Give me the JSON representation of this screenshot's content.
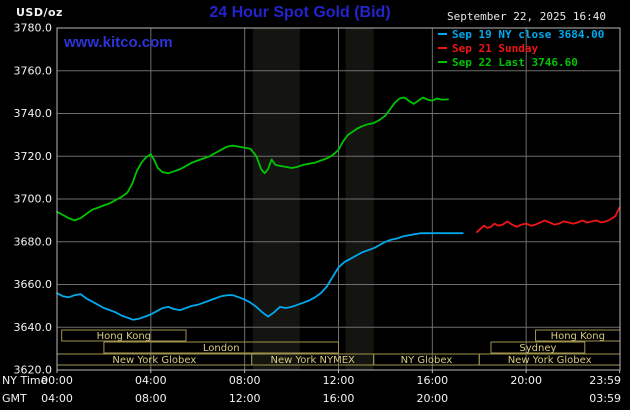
{
  "header": {
    "unit": "USD/oz",
    "title": "24 Hour Spot Gold (Bid)",
    "datetime": "September 22, 2025 16:40"
  },
  "watermark": "www.kitco.com",
  "legend": [
    {
      "label": "Sep 19 NY close 3684.00",
      "color": "#00a8ec"
    },
    {
      "label": "Sep 21 Sunday",
      "color": "#ee1515"
    },
    {
      "label": "Sep 22 Last 3746.60",
      "color": "#00c400"
    }
  ],
  "colors": {
    "background": "#000000",
    "grid": "#6e6e6e",
    "border": "#b8b8b8",
    "axis_text": "#f2f2f2",
    "title_blue": "#2424cf",
    "session_border": "#a0934e",
    "session_text": "#d8ca80",
    "band": "rgba(200,200,160,0.10)"
  },
  "axes": {
    "y": {
      "min": 3620,
      "max": 3780,
      "step": 20,
      "tick_labels": [
        "3780.0",
        "3760.0",
        "3740.0",
        "3720.0",
        "3700.0",
        "3680.0",
        "3660.0",
        "3640.0",
        "3620.0"
      ]
    },
    "x": {
      "row1_label": "NY Time",
      "row2_label": "GMT",
      "ticks": [
        {
          "hour": 0,
          "ny": "00:00",
          "gmt": "04:00"
        },
        {
          "hour": 4,
          "ny": "04:00",
          "gmt": "08:00"
        },
        {
          "hour": 8,
          "ny": "08:00",
          "gmt": "12:00"
        },
        {
          "hour": 12,
          "ny": "12:00",
          "gmt": "16:00"
        },
        {
          "hour": 16,
          "ny": "16:00",
          "gmt": "20:00"
        },
        {
          "hour": 20,
          "ny": "20:00",
          "gmt": ""
        },
        {
          "hour": 23.983,
          "ny": "23:59",
          "gmt": "03:59"
        }
      ]
    }
  },
  "bands": [
    [
      8.35,
      10.35
    ],
    [
      12.3,
      13.5
    ]
  ],
  "sessions": [
    {
      "row": 0,
      "start": 0.2,
      "end": 5.5,
      "label": "Hong Kong"
    },
    {
      "row": 0,
      "start": 20.4,
      "end": 24,
      "label": "Hong Kong"
    },
    {
      "row": 1,
      "start": 2.0,
      "end": 12.0,
      "label": "London"
    },
    {
      "row": 1,
      "start": 18.5,
      "end": 22.5,
      "label": "Sydney"
    },
    {
      "row": 2,
      "start": 0.0,
      "end": 8.3,
      "label": "New York Globex"
    },
    {
      "row": 2,
      "start": 8.3,
      "end": 13.5,
      "label": "New York NYMEX"
    },
    {
      "row": 2,
      "start": 13.5,
      "end": 18.0,
      "label": "NY Globex"
    },
    {
      "row": 2,
      "start": 18.0,
      "end": 24.0,
      "label": "New York Globex"
    }
  ],
  "chart_data": {
    "type": "line",
    "title": "24 Hour Spot Gold (Bid)",
    "xlabel": "NY Time (hours)",
    "ylabel": "USD/oz",
    "xlim": [
      0,
      24
    ],
    "ylim": [
      3620,
      3780
    ],
    "grid": true,
    "legend_position": "top-right",
    "series": [
      {
        "id": "sep19",
        "name": "Sep 19 NY close 3684.00",
        "color": "#00a8ec",
        "points": [
          [
            0,
            3656
          ],
          [
            0.25,
            3654.5
          ],
          [
            0.5,
            3654
          ],
          [
            0.75,
            3655
          ],
          [
            1,
            3655.5
          ],
          [
            1.25,
            3653.5
          ],
          [
            1.5,
            3652
          ],
          [
            1.75,
            3650.5
          ],
          [
            2,
            3649
          ],
          [
            2.25,
            3648
          ],
          [
            2.5,
            3647
          ],
          [
            2.75,
            3645.5
          ],
          [
            3,
            3644.5
          ],
          [
            3.25,
            3643.5
          ],
          [
            3.5,
            3644
          ],
          [
            3.75,
            3645
          ],
          [
            4,
            3646
          ],
          [
            4.25,
            3647.5
          ],
          [
            4.5,
            3649
          ],
          [
            4.75,
            3649.5
          ],
          [
            5,
            3648.5
          ],
          [
            5.25,
            3648
          ],
          [
            5.5,
            3649
          ],
          [
            5.75,
            3650
          ],
          [
            6,
            3650.5
          ],
          [
            6.25,
            3651.5
          ],
          [
            6.5,
            3652.5
          ],
          [
            6.75,
            3653.5
          ],
          [
            7,
            3654.5
          ],
          [
            7.25,
            3655
          ],
          [
            7.5,
            3655
          ],
          [
            7.75,
            3654
          ],
          [
            8,
            3653
          ],
          [
            8.25,
            3651.5
          ],
          [
            8.5,
            3649.5
          ],
          [
            8.75,
            3647
          ],
          [
            9,
            3645
          ],
          [
            9.25,
            3647
          ],
          [
            9.5,
            3649.5
          ],
          [
            9.75,
            3649
          ],
          [
            10,
            3649.5
          ],
          [
            10.25,
            3650.5
          ],
          [
            10.5,
            3651.5
          ],
          [
            10.75,
            3652.5
          ],
          [
            11,
            3654
          ],
          [
            11.25,
            3656
          ],
          [
            11.5,
            3659
          ],
          [
            11.75,
            3663.5
          ],
          [
            12,
            3668
          ],
          [
            12.25,
            3670.5
          ],
          [
            12.5,
            3672
          ],
          [
            12.75,
            3673.5
          ],
          [
            13,
            3675
          ],
          [
            13.25,
            3676
          ],
          [
            13.5,
            3677
          ],
          [
            13.75,
            3678.5
          ],
          [
            14,
            3680
          ],
          [
            14.25,
            3681
          ],
          [
            14.5,
            3681.5
          ],
          [
            14.75,
            3682.5
          ],
          [
            15,
            3683
          ],
          [
            15.25,
            3683.5
          ],
          [
            15.5,
            3684
          ],
          [
            16,
            3684
          ],
          [
            16.5,
            3684
          ],
          [
            17,
            3684
          ],
          [
            17.3,
            3684
          ]
        ]
      },
      {
        "id": "sep21",
        "name": "Sep 21 Sunday",
        "color": "#ee1515",
        "points": [
          [
            17.9,
            3684.5
          ],
          [
            18.05,
            3686
          ],
          [
            18.2,
            3687.5
          ],
          [
            18.35,
            3686.5
          ],
          [
            18.5,
            3687
          ],
          [
            18.65,
            3688.5
          ],
          [
            18.8,
            3687.5
          ],
          [
            19,
            3688
          ],
          [
            19.2,
            3689.5
          ],
          [
            19.4,
            3688
          ],
          [
            19.6,
            3687
          ],
          [
            19.8,
            3688
          ],
          [
            20,
            3688.5
          ],
          [
            20.2,
            3687.5
          ],
          [
            20.4,
            3688
          ],
          [
            20.6,
            3689
          ],
          [
            20.8,
            3690
          ],
          [
            21,
            3689
          ],
          [
            21.2,
            3688
          ],
          [
            21.4,
            3688.5
          ],
          [
            21.6,
            3689.5
          ],
          [
            21.8,
            3689
          ],
          [
            22,
            3688.5
          ],
          [
            22.2,
            3689
          ],
          [
            22.4,
            3690
          ],
          [
            22.6,
            3689
          ],
          [
            22.8,
            3689.5
          ],
          [
            23,
            3690
          ],
          [
            23.2,
            3689
          ],
          [
            23.4,
            3689.5
          ],
          [
            23.6,
            3690.5
          ],
          [
            23.8,
            3692
          ],
          [
            23.98,
            3696
          ]
        ]
      },
      {
        "id": "sep22",
        "name": "Sep 22 Last 3746.60",
        "color": "#00c400",
        "points": [
          [
            0,
            3694
          ],
          [
            0.25,
            3692.5
          ],
          [
            0.5,
            3691
          ],
          [
            0.75,
            3690
          ],
          [
            1,
            3691
          ],
          [
            1.25,
            3693
          ],
          [
            1.5,
            3695
          ],
          [
            1.75,
            3696
          ],
          [
            2,
            3697
          ],
          [
            2.25,
            3698
          ],
          [
            2.5,
            3699.5
          ],
          [
            2.75,
            3701
          ],
          [
            3,
            3703
          ],
          [
            3.2,
            3707
          ],
          [
            3.4,
            3713
          ],
          [
            3.6,
            3717
          ],
          [
            3.8,
            3719.5
          ],
          [
            4,
            3721
          ],
          [
            4.15,
            3718
          ],
          [
            4.3,
            3714.5
          ],
          [
            4.5,
            3712.5
          ],
          [
            4.75,
            3712
          ],
          [
            5,
            3713
          ],
          [
            5.25,
            3714
          ],
          [
            5.5,
            3715.5
          ],
          [
            5.75,
            3717
          ],
          [
            6,
            3718
          ],
          [
            6.25,
            3719
          ],
          [
            6.5,
            3720
          ],
          [
            6.75,
            3721.5
          ],
          [
            7,
            3723
          ],
          [
            7.25,
            3724.5
          ],
          [
            7.5,
            3725
          ],
          [
            7.75,
            3724.5
          ],
          [
            8,
            3724
          ],
          [
            8.25,
            3723.5
          ],
          [
            8.5,
            3720
          ],
          [
            8.7,
            3714
          ],
          [
            8.85,
            3712
          ],
          [
            9,
            3714
          ],
          [
            9.15,
            3718.5
          ],
          [
            9.3,
            3716
          ],
          [
            9.5,
            3715.5
          ],
          [
            9.75,
            3715
          ],
          [
            10,
            3714.5
          ],
          [
            10.25,
            3715
          ],
          [
            10.5,
            3716
          ],
          [
            10.75,
            3716.5
          ],
          [
            11,
            3717
          ],
          [
            11.25,
            3718
          ],
          [
            11.5,
            3719
          ],
          [
            11.75,
            3720.5
          ],
          [
            12,
            3723
          ],
          [
            12.2,
            3727
          ],
          [
            12.4,
            3730
          ],
          [
            12.6,
            3731.5
          ],
          [
            12.8,
            3733
          ],
          [
            13,
            3734
          ],
          [
            13.25,
            3735
          ],
          [
            13.5,
            3735.5
          ],
          [
            13.75,
            3737
          ],
          [
            14,
            3739
          ],
          [
            14.2,
            3742
          ],
          [
            14.4,
            3745
          ],
          [
            14.6,
            3747
          ],
          [
            14.8,
            3747.5
          ],
          [
            15,
            3746
          ],
          [
            15.2,
            3744.5
          ],
          [
            15.4,
            3746
          ],
          [
            15.6,
            3747.5
          ],
          [
            15.8,
            3746.5
          ],
          [
            16,
            3746
          ],
          [
            16.2,
            3747
          ],
          [
            16.4,
            3746.5
          ],
          [
            16.67,
            3746.6
          ]
        ]
      }
    ]
  }
}
